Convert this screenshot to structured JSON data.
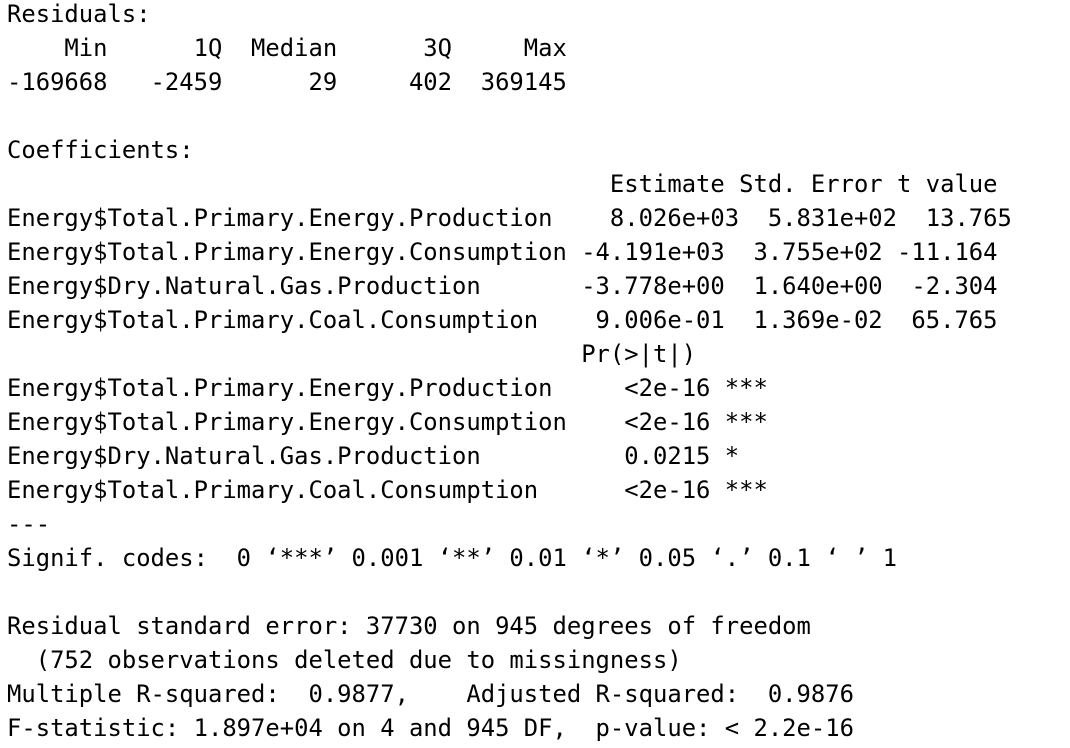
{
  "blocks": [
    [
      "Residuals:",
      "    Min      1Q  Median      3Q     Max",
      "-169668   -2459      29     402  369145"
    ],
    [
      "Coefficients:",
      "                                          Estimate Std. Error t value",
      "Energy$Total.Primary.Energy.Production    8.026e+03  5.831e+02  13.765",
      "Energy$Total.Primary.Energy.Consumption -4.191e+03  3.755e+02 -11.164",
      "Energy$Dry.Natural.Gas.Production       -3.778e+00  1.640e+00  -2.304",
      "Energy$Total.Primary.Coal.Consumption    9.006e-01  1.369e-02  65.765",
      "                                        Pr(>|t|)",
      "Energy$Total.Primary.Energy.Production     <2e-16 ***",
      "Energy$Total.Primary.Energy.Consumption    <2e-16 ***",
      "Energy$Dry.Natural.Gas.Production          0.0215 *",
      "Energy$Total.Primary.Coal.Consumption      <2e-16 ***",
      "---",
      "Signif. codes:  0 ‘***’ 0.001 ‘**’ 0.01 ‘*’ 0.05 ‘.’ 0.1 ‘ ’ 1"
    ],
    [
      "Residual standard error: 37730 on 945 degrees of freedom",
      "  (752 observations deleted due to missingness)",
      "Multiple R-squared:  0.9877,    Adjusted R-squared:  0.9876",
      "F-statistic: 1.897e+04 on 4 and 945 DF,  p-value: < 2.2e-16"
    ]
  ]
}
